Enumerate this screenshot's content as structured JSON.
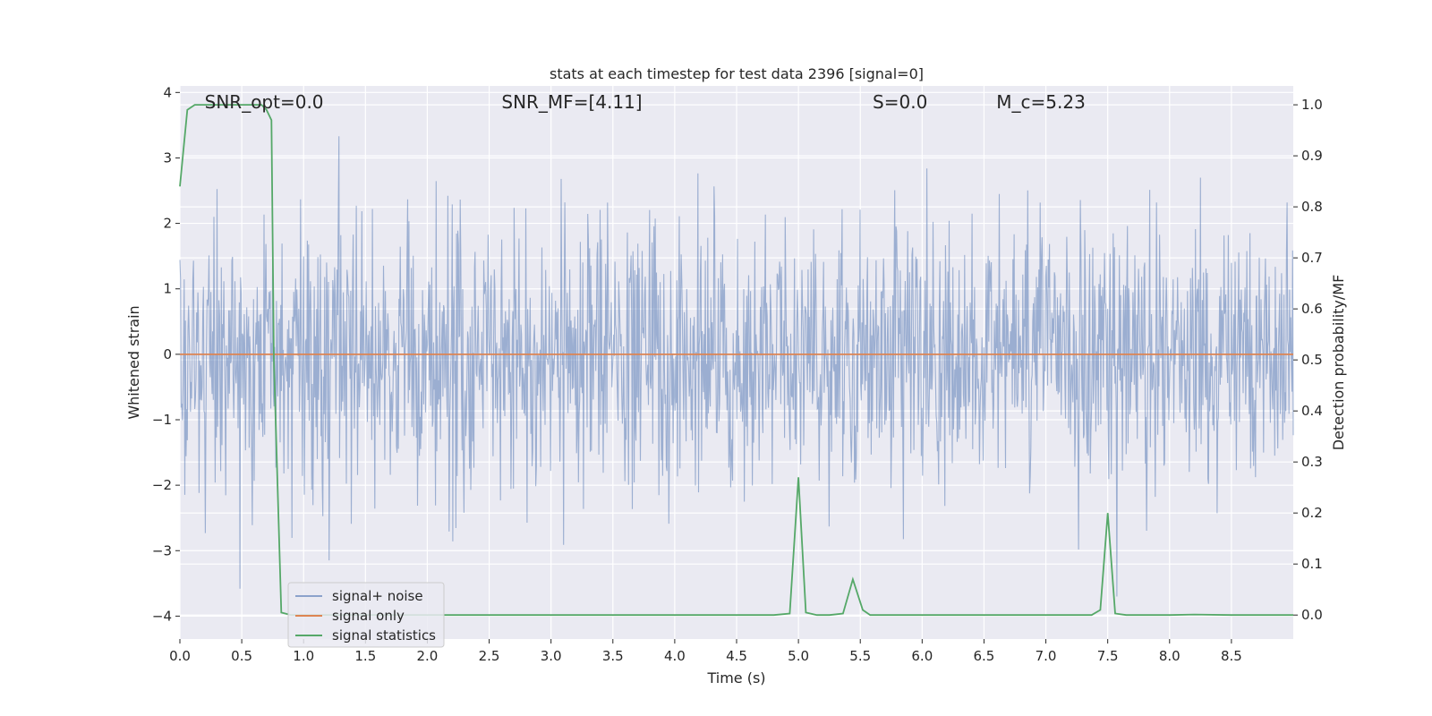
{
  "chart_data": {
    "type": "line",
    "title": "stats at each timestep for test data 2396 [signal=0]",
    "xlabel": "Time (s)",
    "ylabel": "Whitened strain",
    "y2label": "Detection probability/MF",
    "xlim": [
      0.0,
      9.0
    ],
    "ylim": [
      -4.35,
      4.1
    ],
    "y2lim": [
      -0.047,
      1.037
    ],
    "xticks": [
      "0.0",
      "0.5",
      "1.0",
      "1.5",
      "2.0",
      "2.5",
      "3.0",
      "3.5",
      "4.0",
      "4.5",
      "5.0",
      "5.5",
      "6.0",
      "6.5",
      "7.0",
      "7.5",
      "8.0",
      "8.5"
    ],
    "yticks": [
      "−4",
      "−3",
      "−2",
      "−1",
      "0",
      "1",
      "2",
      "3",
      "4"
    ],
    "y2ticks": [
      "0.0",
      "0.1",
      "0.2",
      "0.3",
      "0.4",
      "0.5",
      "0.6",
      "0.7",
      "0.8",
      "0.9",
      "1.0"
    ],
    "grid": true,
    "legend_position": "lower-left",
    "annotations": [
      {
        "text": "SNR_opt=0.0",
        "x": 0.2
      },
      {
        "text": "SNR_MF=[4.11]",
        "x": 2.6
      },
      {
        "text": "S=0.0",
        "x": 5.6
      },
      {
        "text": "M_c=5.23",
        "x": 6.6
      }
    ],
    "series": [
      {
        "name": "signal+ noise",
        "color": "#4c72b0",
        "kind": "noise",
        "noise_sigma": 1.0,
        "noise_range": [
          -3.7,
          3.7
        ]
      },
      {
        "name": "signal only",
        "color": "#dd8452",
        "x": [
          0.0,
          9.0
        ],
        "y": [
          0.0,
          0.0
        ]
      },
      {
        "name": "signal statistics",
        "color": "#55a868",
        "axis": "right",
        "x": [
          0.0,
          0.06,
          0.12,
          0.2,
          0.3,
          0.4,
          0.5,
          0.6,
          0.66,
          0.7,
          0.74,
          0.76,
          0.82,
          0.9,
          1.0,
          2.0,
          3.0,
          4.0,
          4.8,
          4.93,
          5.0,
          5.06,
          5.15,
          5.25,
          5.36,
          5.44,
          5.52,
          5.58,
          6.0,
          7.0,
          7.37,
          7.44,
          7.5,
          7.56,
          7.65,
          8.0,
          8.2,
          8.5,
          9.0
        ],
        "y": [
          0.84,
          0.99,
          1.0,
          1.0,
          1.0,
          1.0,
          1.0,
          1.0,
          1.0,
          0.99,
          0.97,
          0.5,
          0.005,
          0.0,
          0.0,
          0.0,
          0.0,
          0.0,
          0.0,
          0.003,
          0.27,
          0.005,
          0.0,
          0.0,
          0.003,
          0.07,
          0.01,
          0.0,
          0.0,
          0.0,
          0.0,
          0.01,
          0.2,
          0.003,
          0.0,
          0.0,
          0.001,
          0.0,
          0.0
        ]
      }
    ]
  }
}
